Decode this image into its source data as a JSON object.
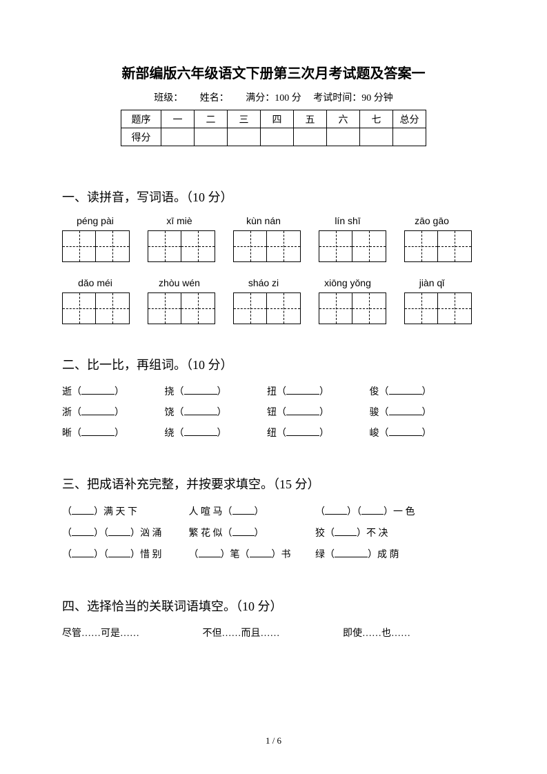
{
  "title": "新部编版六年级语文下册第三次月考试题及答案一",
  "info": {
    "class_label": "班级：",
    "name_label": "姓名：",
    "fullscore_label": "满分：100 分",
    "time_label": "考试时间：90 分钟"
  },
  "score_table": {
    "header_label": "题序",
    "score_label": "得分",
    "cols": [
      "一",
      "二",
      "三",
      "四",
      "五",
      "六",
      "七",
      "总分"
    ]
  },
  "section1": {
    "heading": "一、读拼音，写词语。（10 分）",
    "row1": [
      "péng pài",
      "xī   miè",
      "kùn nán",
      "lín shī",
      "zāo gāo"
    ],
    "row2": [
      "dǎo méi",
      "zhòu wén",
      "sháo zi",
      "xiōng yǒng",
      "jiàn qǐ"
    ]
  },
  "section2": {
    "heading": "二、比一比，再组词。（10 分）",
    "lines": [
      [
        "逝",
        "挠",
        "扭",
        "俊"
      ],
      [
        "浙",
        "饶",
        "钮",
        "骏"
      ],
      [
        "晰",
        "绕",
        "纽",
        "峻"
      ]
    ]
  },
  "section3": {
    "heading": "三、把成语补充完整，并按要求填空。（15 分）",
    "line1": {
      "a": "）满  天  下",
      "b": "人 喧 马（",
      "c_pre": "（",
      "c_mid": "）（",
      "c_suf": "）一 色"
    },
    "line2": {
      "a_pre": "（",
      "a_mid": "）（",
      "a_suf": "）汹 涌",
      "b": "繁 花 似（",
      "c_pre": "狡（",
      "c_suf": "）不 决"
    },
    "line3": {
      "a_pre": "（",
      "a_mid": "）（",
      "a_suf": "）惜 别",
      "b_pre": "（",
      "b_mid": "）笔（",
      "b_suf": "）书",
      "c_pre": "绿（",
      "c_suf": "）成 荫"
    }
  },
  "section4": {
    "heading": "四、选择恰当的关联词语填空。（10 分）",
    "options": [
      "尽管……可是……",
      "不但……而且……",
      "即使……也……"
    ]
  },
  "page_num": "1 / 6"
}
